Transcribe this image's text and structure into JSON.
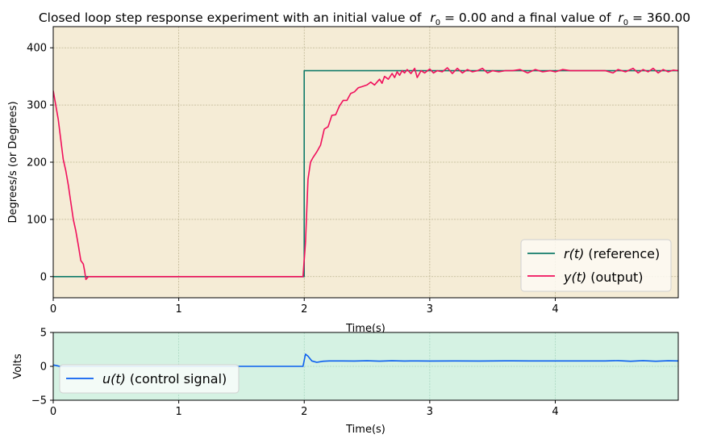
{
  "chart_data": [
    {
      "type": "line",
      "title": "Closed loop step response experiment with an initial value of  $r_0 = 0.00$ and a  final value of $r_0 = 360.00$",
      "title_parts": {
        "prefix": "Closed loop step response experiment with an initial value of ",
        "r0_symbol": "r",
        "r0_sub": "0",
        "initial_value_text": " = 0.00",
        "middle": " and a  final value of ",
        "final_value_text": " = 360.00"
      },
      "xlabel": "Time(s)",
      "ylabel": "Degrees/s (or Degrees)",
      "xlim": [
        0,
        4.98
      ],
      "ylim": [
        -37,
        437
      ],
      "xticks": [
        0,
        1,
        2,
        3,
        4
      ],
      "xtick_labels": [
        "0",
        "1",
        "2",
        "3",
        "4"
      ],
      "yticks": [
        0,
        100,
        200,
        300,
        400
      ],
      "ytick_labels": [
        "0",
        "100",
        "200",
        "300",
        "400"
      ],
      "grid": true,
      "legend_position": "lower-right",
      "background_color": "#f5ecd6",
      "series": [
        {
          "name": "r(t) (reference)",
          "legend_math": "r(t)",
          "legend_text": "(reference)",
          "color": "#107a6a",
          "step": true,
          "x": [
            0,
            2.0,
            2.0,
            4.98
          ],
          "y": [
            0,
            0,
            360,
            360
          ]
        },
        {
          "name": "y(t) (output)",
          "legend_math": "y(t)",
          "legend_text": "(output)",
          "color": "#f0105c",
          "x": [
            0,
            0.02,
            0.04,
            0.06,
            0.08,
            0.1,
            0.12,
            0.14,
            0.16,
            0.18,
            0.2,
            0.22,
            0.24,
            0.25,
            0.26,
            0.28,
            0.5,
            1.0,
            1.5,
            1.99,
            2.01,
            2.03,
            2.05,
            2.07,
            2.1,
            2.13,
            2.16,
            2.19,
            2.22,
            2.25,
            2.28,
            2.31,
            2.34,
            2.37,
            2.4,
            2.43,
            2.46,
            2.5,
            2.53,
            2.56,
            2.6,
            2.62,
            2.64,
            2.67,
            2.7,
            2.72,
            2.74,
            2.76,
            2.78,
            2.8,
            2.82,
            2.85,
            2.88,
            2.9,
            2.93,
            2.96,
            3.0,
            3.03,
            3.06,
            3.1,
            3.14,
            3.18,
            3.22,
            3.26,
            3.3,
            3.34,
            3.38,
            3.42,
            3.46,
            3.5,
            3.55,
            3.6,
            3.66,
            3.72,
            3.78,
            3.84,
            3.9,
            3.96,
            4.0,
            4.06,
            4.12,
            4.2,
            4.3,
            4.4,
            4.46,
            4.5,
            4.56,
            4.62,
            4.66,
            4.7,
            4.74,
            4.78,
            4.82,
            4.86,
            4.9,
            4.94,
            4.98
          ],
          "y": [
            325,
            300,
            275,
            240,
            205,
            185,
            160,
            130,
            100,
            80,
            55,
            28,
            22,
            10,
            -5,
            0,
            0,
            0,
            0,
            0,
            60,
            170,
            200,
            208,
            218,
            230,
            258,
            262,
            282,
            283,
            298,
            308,
            308,
            320,
            323,
            330,
            332,
            335,
            340,
            335,
            345,
            338,
            350,
            345,
            355,
            348,
            358,
            352,
            360,
            356,
            362,
            355,
            364,
            348,
            360,
            356,
            363,
            356,
            360,
            358,
            365,
            355,
            364,
            356,
            362,
            358,
            360,
            364,
            356,
            360,
            358,
            360,
            360,
            362,
            356,
            362,
            358,
            360,
            358,
            362,
            360,
            360,
            360,
            360,
            356,
            362,
            358,
            364,
            356,
            362,
            358,
            364,
            356,
            362,
            358,
            361,
            360
          ]
        }
      ]
    },
    {
      "type": "line",
      "title": "",
      "xlabel": "Time(s)",
      "ylabel": "Volts",
      "xlim": [
        0,
        4.98
      ],
      "ylim": [
        -5,
        5
      ],
      "xticks": [
        0,
        1,
        2,
        3,
        4
      ],
      "xtick_labels": [
        "0",
        "1",
        "2",
        "3",
        "4"
      ],
      "yticks": [
        -5,
        0,
        5
      ],
      "ytick_labels": [
        "−5",
        "0",
        "5"
      ],
      "grid": true,
      "legend_position": "lower-left",
      "background_color": "#d5f2e3",
      "series": [
        {
          "name": "u(t) (control signal)",
          "legend_math": "u(t)",
          "legend_text": "(control signal)",
          "color": "#0a5ff0",
          "x": [
            0,
            0.03,
            0.05,
            0.1,
            1.0,
            1.99,
            2.01,
            2.03,
            2.06,
            2.1,
            2.15,
            2.2,
            2.3,
            2.4,
            2.5,
            2.6,
            2.7,
            2.8,
            2.9,
            3.0,
            3.2,
            3.4,
            3.6,
            3.8,
            4.0,
            4.2,
            4.4,
            4.5,
            4.6,
            4.7,
            4.8,
            4.9,
            4.98
          ],
          "y": [
            0.2,
            0.1,
            0,
            0,
            0,
            0,
            1.8,
            1.5,
            0.8,
            0.6,
            0.75,
            0.8,
            0.8,
            0.78,
            0.82,
            0.76,
            0.82,
            0.78,
            0.8,
            0.78,
            0.8,
            0.79,
            0.81,
            0.8,
            0.8,
            0.8,
            0.8,
            0.85,
            0.75,
            0.85,
            0.75,
            0.82,
            0.8
          ]
        }
      ]
    }
  ]
}
